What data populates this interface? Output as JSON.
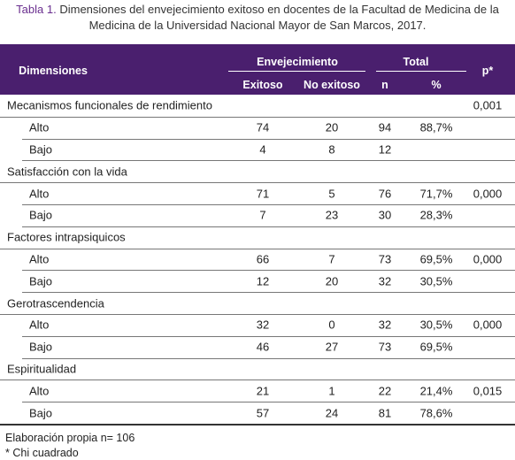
{
  "caption": {
    "label": "Tabla 1.",
    "text": "Dimensiones del envejecimiento exitoso en docentes de la Facultad de Medicina de la Medicina de la Universidad Nacional Mayor de San Marcos, 2017."
  },
  "table": {
    "header": {
      "dimensiones": "Dimensiones",
      "envejecimiento": "Envejecimiento",
      "total": "Total",
      "p": "p*",
      "exitoso": "Exitoso",
      "no_exitoso": "No exitoso",
      "n": "n",
      "pct": "%"
    },
    "groups": [
      {
        "name": "Mecanismos funcionales de rendimiento",
        "p": "0,001",
        "rows": [
          {
            "label": "Alto",
            "exitoso": "74",
            "no_exitoso": "20",
            "n": "94",
            "pct": "88,7%"
          },
          {
            "label": "Bajo",
            "exitoso": "4",
            "no_exitoso": "8",
            "n": "12"
          }
        ]
      },
      {
        "name": "Satisfacción con la vida",
        "rows": [
          {
            "label": "Alto",
            "exitoso": "71",
            "no_exitoso": "5",
            "n": "76",
            "pct": "71,7%",
            "p": "0,000"
          },
          {
            "label": "Bajo",
            "exitoso": "7",
            "no_exitoso": "23",
            "n": "30",
            "pct": "28,3%"
          }
        ]
      },
      {
        "name": "Factores intrapsiquicos",
        "rows": [
          {
            "label": "Alto",
            "exitoso": "66",
            "no_exitoso": "7",
            "n": "73",
            "pct": "69,5%",
            "p": "0,000"
          },
          {
            "label": "Bajo",
            "exitoso": "12",
            "no_exitoso": "20",
            "n": "32",
            "pct": "30,5%"
          }
        ]
      },
      {
        "name": "Gerotrascendencia",
        "rows": [
          {
            "label": "Alto",
            "exitoso": "32",
            "no_exitoso": "0",
            "n": "32",
            "pct": "30,5%",
            "p": "0,000"
          },
          {
            "label": "Bajo",
            "exitoso": "46",
            "no_exitoso": "27",
            "n": "73",
            "pct": "69,5%"
          }
        ]
      },
      {
        "name": "Espiritualidad",
        "rows": [
          {
            "label": "Alto",
            "exitoso": "21",
            "no_exitoso": "1",
            "n": "22",
            "pct": "21,4%",
            "p": "0,015"
          },
          {
            "label": "Bajo",
            "exitoso": "57",
            "no_exitoso": "24",
            "n": "81",
            "pct": "78,6%"
          }
        ]
      }
    ]
  },
  "notes": [
    "Elaboración propia n= 106",
    "* Chi cuadrado"
  ]
}
